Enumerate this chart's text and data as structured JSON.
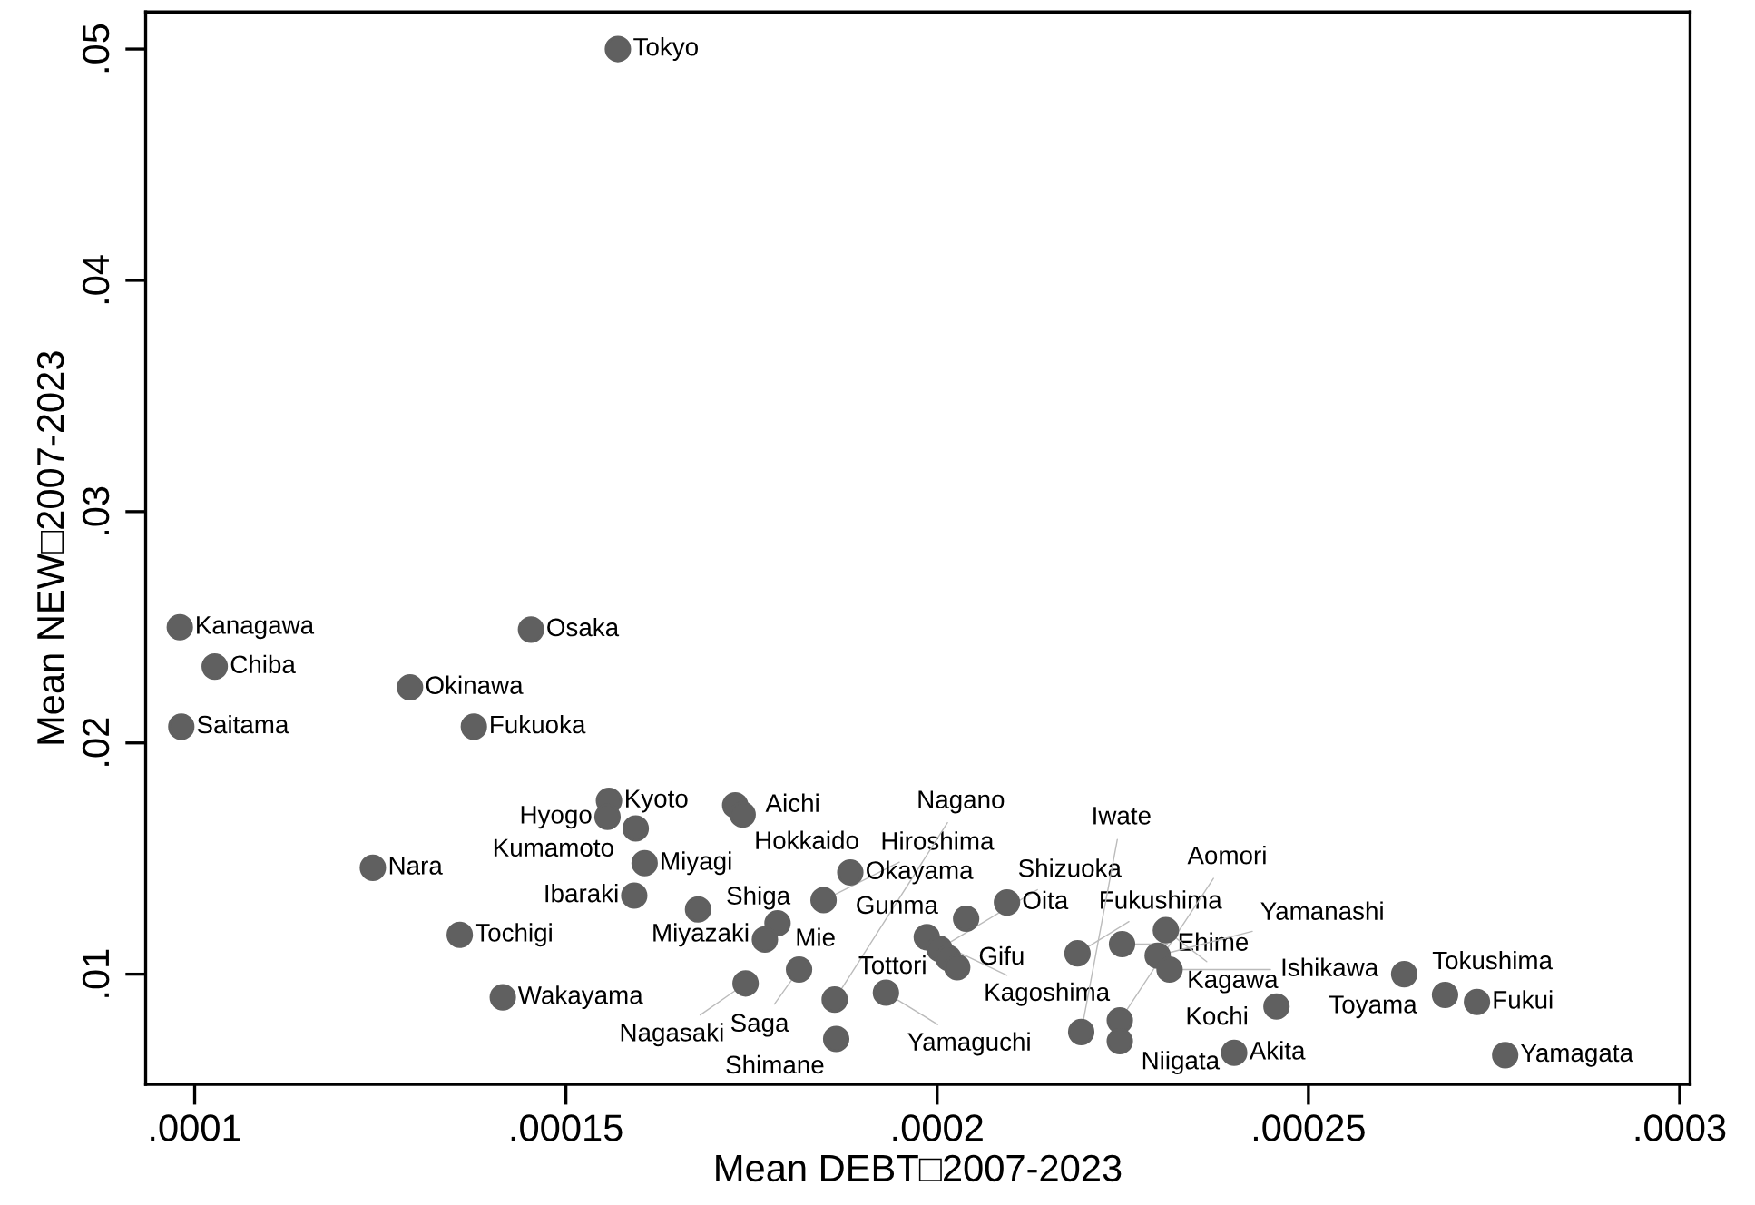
{
  "chart_data": {
    "type": "scatter",
    "xlabel": "Mean DEBT□2007-2023",
    "ylabel": "Mean NEW□2007-2023",
    "marker": "circle",
    "grid": false,
    "xlim": [
      9.34e-05,
      0.0003014
    ],
    "ylim": [
      0.00523,
      0.0516
    ],
    "xticks": [
      {
        "value": 0.0001,
        "label": ".0001"
      },
      {
        "value": 0.00015,
        "label": ".00015"
      },
      {
        "value": 0.0002,
        "label": ".0002"
      },
      {
        "value": 0.00025,
        "label": ".00025"
      },
      {
        "value": 0.0003,
        "label": ".0003"
      }
    ],
    "yticks": [
      {
        "value": 0.01,
        "label": ".01"
      },
      {
        "value": 0.02,
        "label": ".02"
      },
      {
        "value": 0.03,
        "label": ".03"
      },
      {
        "value": 0.04,
        "label": ".04"
      },
      {
        "value": 0.05,
        "label": ".05"
      }
    ],
    "series": [
      {
        "color": "#606060",
        "x": [
          0.000157,
          9.8e-05,
          0.0001027,
          9.82e-05,
          0.0001453,
          0.000129,
          0.0001376,
          0.0001558,
          0.0001556,
          0.0001728,
          0.0001738,
          0.0001594,
          0.0001606,
          0.000124,
          0.0001592,
          0.0001678,
          0.0001357,
          0.0001415,
          0.0001883,
          0.0001847,
          0.0001785,
          0.0001768,
          0.0002094,
          0.0002039,
          0.0001986,
          0.0002003,
          0.0002015,
          0.0002027,
          0.0001931,
          0.0001742,
          0.0001814,
          0.0001862,
          0.0001864,
          0.0002189,
          0.0002249,
          0.0002308,
          0.0002297,
          0.0002313,
          0.0002629,
          0.0002684,
          0.0002727,
          0.0002765,
          0.0002457,
          0.00024,
          0.0002246,
          0.0002246,
          0.0002194
        ],
        "values": [
          0.05,
          0.025,
          0.0233,
          0.0207,
          0.0249,
          0.0224,
          0.0207,
          0.0175,
          0.0168,
          0.0173,
          0.0169,
          0.0163,
          0.0148,
          0.0146,
          0.0134,
          0.0128,
          0.0117,
          0.009,
          0.0144,
          0.0132,
          0.0122,
          0.0115,
          0.0131,
          0.0124,
          0.0116,
          0.0111,
          0.0107,
          0.0103,
          0.0092,
          0.0096,
          0.0102,
          0.0089,
          0.0072,
          0.0109,
          0.0113,
          0.0119,
          0.0108,
          0.0102,
          0.01,
          0.0091,
          0.0088,
          0.0065,
          0.0086,
          0.0066,
          0.008,
          0.0071,
          0.0075
        ]
      }
    ],
    "annotations": [
      {
        "text": "Tokyo",
        "x": 0.000157,
        "y": 0.05
      },
      {
        "text": "Kanagawa",
        "x": 9.8e-05,
        "y": 0.025
      },
      {
        "text": "Chiba",
        "x": 0.0001027,
        "y": 0.0233
      },
      {
        "text": "Saitama",
        "x": 9.82e-05,
        "y": 0.0207
      },
      {
        "text": "Osaka",
        "x": 0.0001453,
        "y": 0.0249
      },
      {
        "text": "Okinawa",
        "x": 0.000129,
        "y": 0.0224
      },
      {
        "text": "Fukuoka",
        "x": 0.0001376,
        "y": 0.0207
      },
      {
        "text": "Kyoto",
        "x": 0.0001558,
        "y": 0.0175
      },
      {
        "text": "Hyogo",
        "x": 0.0001556,
        "y": 0.0168
      },
      {
        "text": "Aichi",
        "x": 0.0001728,
        "y": 0.0173
      },
      {
        "text": "Hokkaido",
        "x": 0.0001738,
        "y": 0.0169
      },
      {
        "text": "Kumamoto",
        "x": 0.0001594,
        "y": 0.0163
      },
      {
        "text": "Miyagi",
        "x": 0.0001606,
        "y": 0.0148
      },
      {
        "text": "Nara",
        "x": 0.000124,
        "y": 0.0146
      },
      {
        "text": "Ibaraki",
        "x": 0.0001592,
        "y": 0.0134
      },
      {
        "text": "Shiga",
        "x": 0.0001678,
        "y": 0.0128
      },
      {
        "text": "Tochigi",
        "x": 0.0001357,
        "y": 0.0117
      },
      {
        "text": "Wakayama",
        "x": 0.0001415,
        "y": 0.009
      },
      {
        "text": "Okayama",
        "x": 0.0001883,
        "y": 0.0144
      },
      {
        "text": "Hiroshima",
        "x": 0.0001847,
        "y": 0.0132
      },
      {
        "text": "Miyazaki",
        "x": 0.0001785,
        "y": 0.0122
      },
      {
        "text": "Mie",
        "x": 0.0001768,
        "y": 0.0115
      },
      {
        "text": "Oita",
        "x": 0.0002094,
        "y": 0.0131
      },
      {
        "text": "Gunma",
        "x": 0.0002039,
        "y": 0.0124
      },
      {
        "text": "Kagoshima",
        "x": 0.0001986,
        "y": 0.0116
      },
      {
        "text": "Shizuoka",
        "x": 0.0002003,
        "y": 0.0111
      },
      {
        "text": "Gifu",
        "x": 0.0002015,
        "y": 0.0107
      },
      {
        "text": "Tottori",
        "x": 0.0002027,
        "y": 0.0103
      },
      {
        "text": "Yamaguchi",
        "x": 0.0001931,
        "y": 0.0092
      },
      {
        "text": "Nagasaki",
        "x": 0.0001742,
        "y": 0.0096
      },
      {
        "text": "Saga",
        "x": 0.0001814,
        "y": 0.0102
      },
      {
        "text": "Nagano",
        "x": 0.0001862,
        "y": 0.0089
      },
      {
        "text": "Shimane",
        "x": 0.0001864,
        "y": 0.0072
      },
      {
        "text": "Fukushima",
        "x": 0.0002189,
        "y": 0.0109
      },
      {
        "text": "Ehime",
        "x": 0.0002249,
        "y": 0.0113
      },
      {
        "text": "Kagawa",
        "x": 0.0002308,
        "y": 0.0119
      },
      {
        "text": "Yamanashi",
        "x": 0.0002297,
        "y": 0.0108
      },
      {
        "text": "Ishikawa",
        "x": 0.0002313,
        "y": 0.0102
      },
      {
        "text": "Tokushima",
        "x": 0.0002629,
        "y": 0.01
      },
      {
        "text": "Toyama",
        "x": 0.0002684,
        "y": 0.0091
      },
      {
        "text": "Fukui",
        "x": 0.0002727,
        "y": 0.0088
      },
      {
        "text": "Yamagata",
        "x": 0.0002765,
        "y": 0.0065
      },
      {
        "text": "Kochi",
        "x": 0.0002457,
        "y": 0.0086
      },
      {
        "text": "Akita",
        "x": 0.00024,
        "y": 0.0066
      },
      {
        "text": "Aomori",
        "x": 0.0002246,
        "y": 0.008
      },
      {
        "text": "Niigata",
        "x": 0.0002246,
        "y": 0.0071
      },
      {
        "text": "Iwate",
        "x": 0.0002194,
        "y": 0.0075
      }
    ]
  }
}
